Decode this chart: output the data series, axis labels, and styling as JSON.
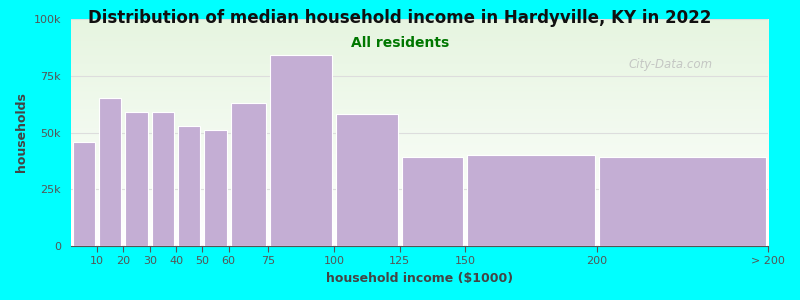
{
  "title": "Distribution of median household income in Hardyville, KY in 2022",
  "subtitle": "All residents",
  "xlabel": "household income ($1000)",
  "ylabel": "households",
  "background_color": "#00FFFF",
  "plot_bg_top": "#e6f5e0",
  "plot_bg_bottom": "#ffffff",
  "bar_color": "#c4aed4",
  "bar_edge_color": "#ffffff",
  "categories": [
    "10",
    "20",
    "30",
    "40",
    "50",
    "60",
    "75",
    "100",
    "125",
    "150",
    "200",
    "> 200"
  ],
  "bar_lefts": [
    0,
    10,
    20,
    30,
    40,
    50,
    60,
    75,
    100,
    125,
    150,
    200
  ],
  "bar_widths": [
    10,
    10,
    10,
    10,
    10,
    10,
    15,
    25,
    25,
    25,
    50,
    65
  ],
  "values": [
    46000,
    65000,
    59000,
    59000,
    53000,
    51000,
    63000,
    84000,
    58000,
    39000,
    40000,
    39000
  ],
  "ylim": [
    0,
    100000
  ],
  "yticks": [
    0,
    25000,
    50000,
    75000,
    100000
  ],
  "ytick_labels": [
    "0",
    "25k",
    "50k",
    "75k",
    "100k"
  ],
  "xtick_positions": [
    10,
    20,
    30,
    40,
    50,
    60,
    75,
    100,
    125,
    150,
    200,
    265
  ],
  "xtick_labels": [
    "10",
    "20",
    "30",
    "40",
    "50",
    "60",
    "75",
    "100",
    "125",
    "150",
    "200",
    "> 200"
  ],
  "xlim": [
    0,
    265
  ],
  "title_fontsize": 12,
  "subtitle_fontsize": 10,
  "axis_label_fontsize": 9,
  "tick_fontsize": 8,
  "watermark_text": "City-Data.com",
  "title_color": "#111111",
  "subtitle_color": "#007700",
  "axis_label_color": "#444444",
  "tick_color": "#555555",
  "grid_color": "#dddddd"
}
